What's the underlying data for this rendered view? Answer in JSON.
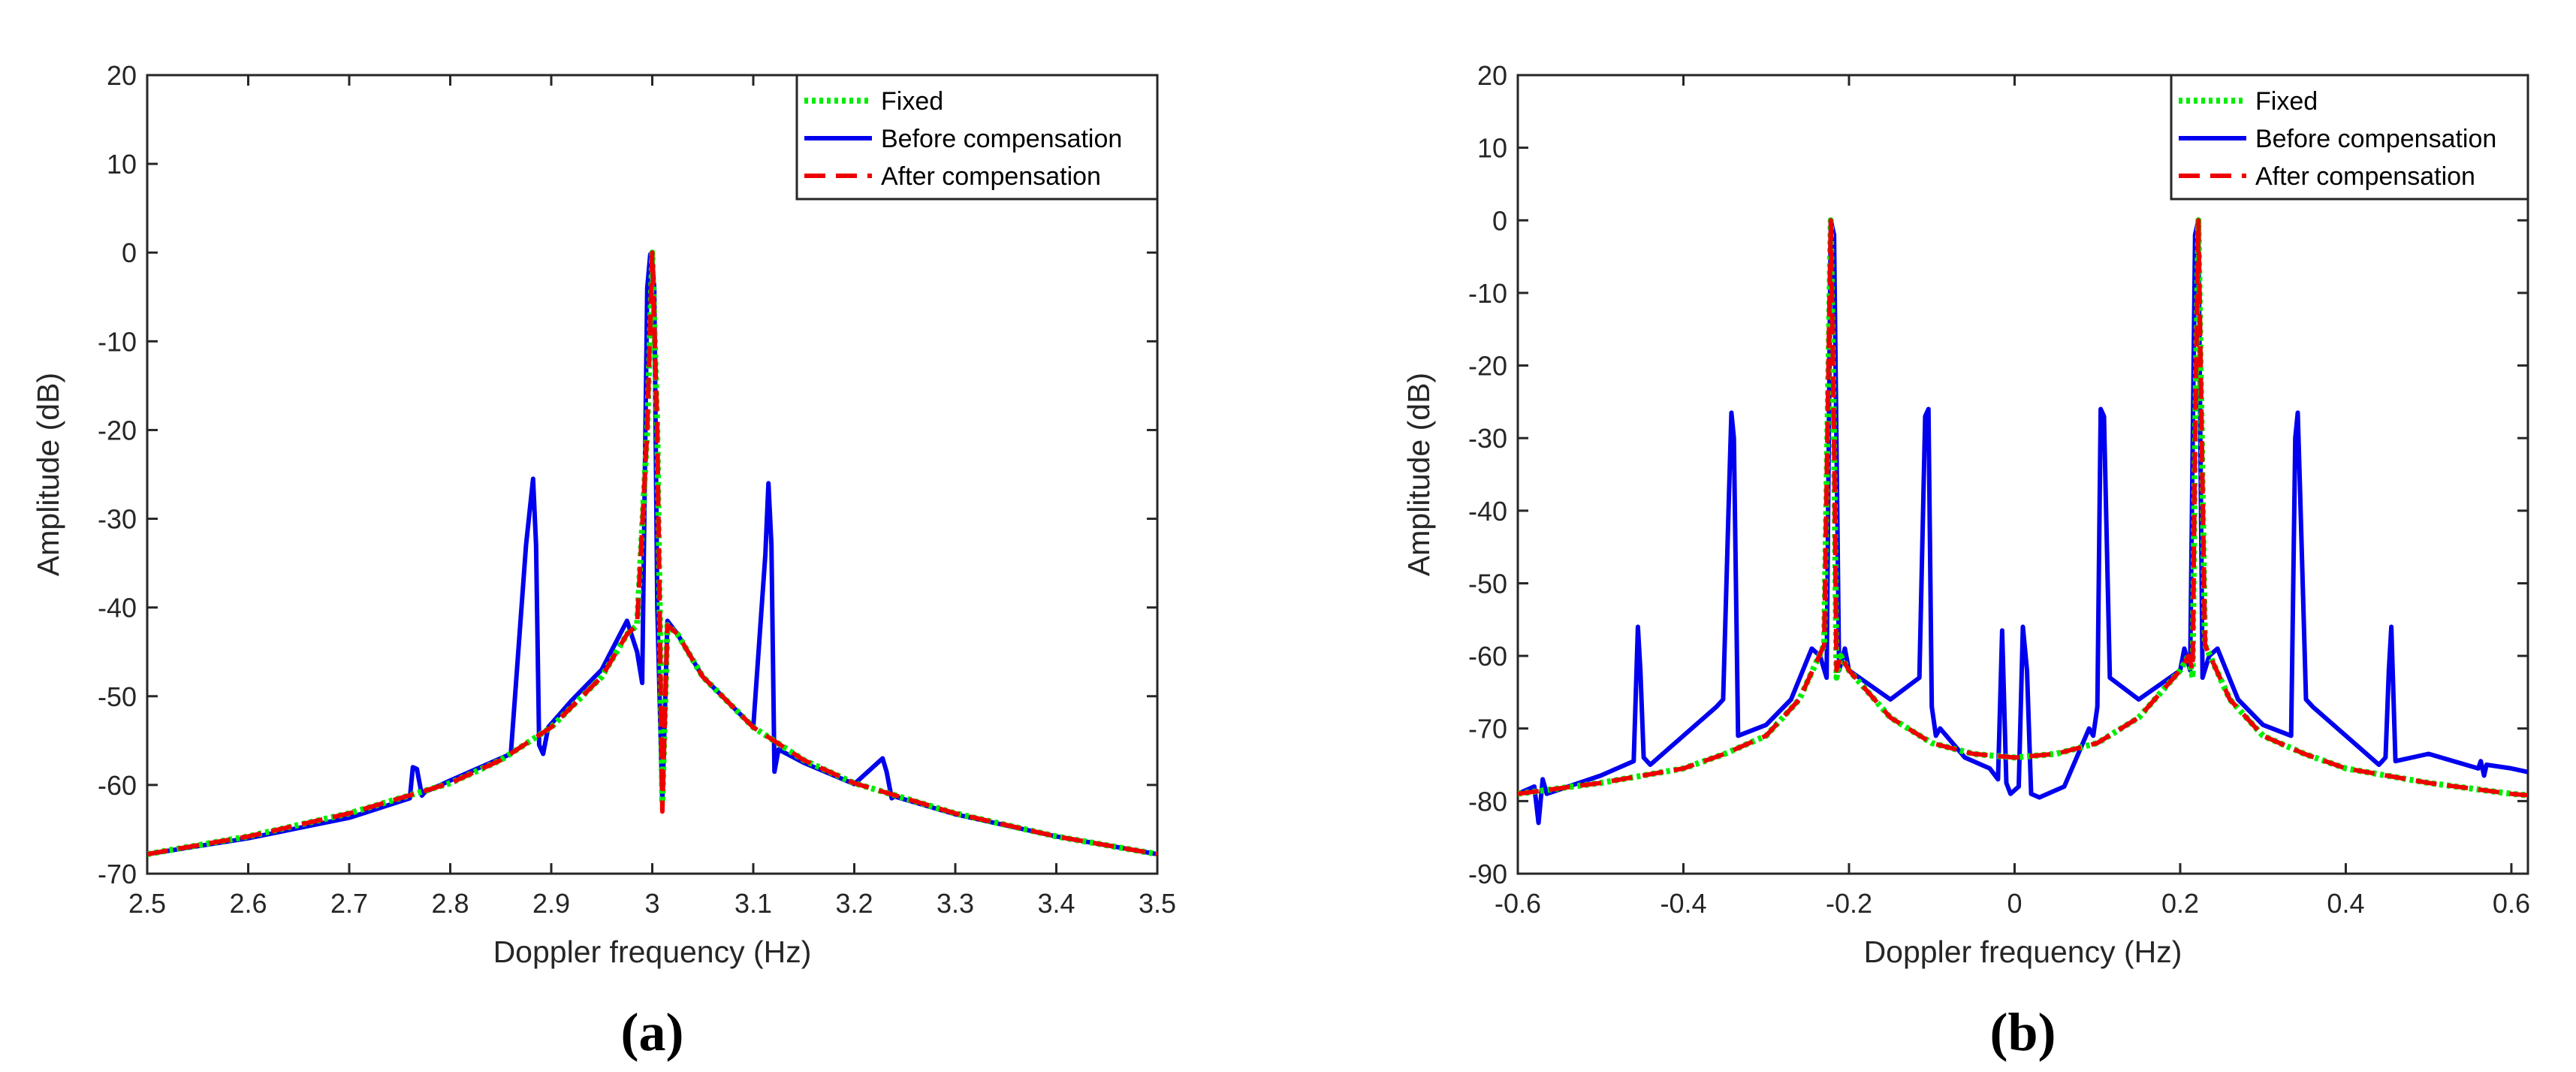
{
  "chart_data": [
    {
      "type": "line",
      "panel_label": "(a)",
      "xlabel": "Doppler frequency (Hz)",
      "ylabel": "Amplitude (dB)",
      "xlim": [
        2.5,
        3.5
      ],
      "ylim": [
        -70,
        20
      ],
      "xticks": [
        2.5,
        2.6,
        2.7,
        2.8,
        2.9,
        3.0,
        3.1,
        3.2,
        3.3,
        3.4,
        3.5
      ],
      "xtick_labels": [
        "2.5",
        "2.6",
        "2.7",
        "2.8",
        "2.9",
        "3",
        "3.1",
        "3.2",
        "3.3",
        "3.4",
        "3.5"
      ],
      "yticks": [
        -70,
        -60,
        -50,
        -40,
        -30,
        -20,
        -10,
        0,
        10,
        20
      ],
      "ytick_labels": [
        "-70",
        "-60",
        "-50",
        "-40",
        "-30",
        "-20",
        "-10",
        "0",
        "10",
        "20"
      ],
      "legend_position": "top-right",
      "grid": false,
      "series": [
        {
          "name": "Fixed",
          "style": "dotted",
          "color": "#00ee00",
          "x": [
            2.5,
            2.6,
            2.7,
            2.8,
            2.85,
            2.9,
            2.95,
            2.975,
            2.985,
            2.995,
            3.0,
            3.005,
            3.01,
            3.015,
            3.025,
            3.05,
            3.1,
            3.15,
            3.2,
            3.3,
            3.4,
            3.5
          ],
          "y": [
            -67.8,
            -65.8,
            -63.2,
            -59.8,
            -57.2,
            -53.5,
            -47.8,
            -43.0,
            -42.0,
            -20,
            0,
            -20,
            -62.0,
            -42.0,
            -43.0,
            -47.8,
            -53.5,
            -57.2,
            -59.8,
            -63.2,
            -65.8,
            -67.8
          ]
        },
        {
          "name": "Before compensation",
          "style": "solid",
          "color": "#0000ee",
          "x": [
            2.5,
            2.6,
            2.7,
            2.76,
            2.763,
            2.767,
            2.772,
            2.775,
            2.8,
            2.86,
            2.875,
            2.882,
            2.885,
            2.888,
            2.892,
            2.897,
            2.92,
            2.95,
            2.975,
            2.985,
            2.99,
            2.995,
            2.998,
            3.0,
            3.002,
            3.005,
            3.01,
            3.015,
            3.025,
            3.05,
            3.1,
            3.112,
            3.115,
            3.118,
            3.121,
            3.125,
            3.15,
            3.2,
            3.228,
            3.232,
            3.237,
            3.24,
            3.3,
            3.4,
            3.5
          ],
          "y": [
            -67.8,
            -66.0,
            -63.7,
            -61.5,
            -58.0,
            -58.2,
            -61.2,
            -60.8,
            -59.5,
            -56.5,
            -33.0,
            -25.5,
            -33.0,
            -55.5,
            -56.5,
            -53.5,
            -50.5,
            -47.0,
            -41.5,
            -45.0,
            -48.5,
            -4.0,
            -0.2,
            -1.0,
            -4.0,
            -40.0,
            -62.0,
            -41.5,
            -43.0,
            -47.8,
            -53.5,
            -34.0,
            -26.0,
            -33.0,
            -58.5,
            -56.0,
            -57.5,
            -59.9,
            -57.0,
            -58.5,
            -61.5,
            -61.3,
            -63.3,
            -65.8,
            -67.8
          ]
        },
        {
          "name": "After compensation",
          "style": "dashed",
          "color": "#ee0000",
          "x": [
            2.5,
            2.6,
            2.7,
            2.8,
            2.85,
            2.9,
            2.95,
            2.975,
            2.985,
            2.995,
            3.0,
            3.005,
            3.01,
            3.015,
            3.025,
            3.05,
            3.1,
            3.15,
            3.2,
            3.3,
            3.4,
            3.5
          ],
          "y": [
            -67.8,
            -65.8,
            -63.2,
            -59.8,
            -57.2,
            -53.5,
            -47.8,
            -43.0,
            -42.0,
            -20,
            0,
            -20,
            -63.0,
            -42.0,
            -43.0,
            -47.8,
            -53.5,
            -57.2,
            -59.8,
            -63.2,
            -65.8,
            -67.8
          ]
        }
      ]
    },
    {
      "type": "line",
      "panel_label": "(b)",
      "xlabel": "Doppler frequency (Hz)",
      "ylabel": "Amplitude (dB)",
      "xlim": [
        -0.6,
        0.62
      ],
      "ylim": [
        -90,
        20
      ],
      "xticks": [
        -0.6,
        -0.4,
        -0.2,
        0,
        0.2,
        0.4,
        0.6
      ],
      "xtick_labels": [
        "-0.6",
        "-0.4",
        "-0.2",
        "0",
        "0.2",
        "0.4",
        "0.6"
      ],
      "yticks": [
        -90,
        -80,
        -70,
        -60,
        -50,
        -40,
        -30,
        -20,
        -10,
        0,
        10,
        20
      ],
      "ytick_labels": [
        "-90",
        "-80",
        "-70",
        "-60",
        "-50",
        "-40",
        "-30",
        "-20",
        "-10",
        "0",
        "10",
        "20"
      ],
      "legend_position": "top-right",
      "grid": false,
      "series": [
        {
          "name": "Fixed",
          "style": "dotted",
          "color": "#00ee00",
          "x": [
            -0.6,
            -0.5,
            -0.4,
            -0.35,
            -0.3,
            -0.26,
            -0.24,
            -0.23,
            -0.222,
            -0.218,
            -0.215,
            -0.21,
            -0.2,
            -0.15,
            -0.1,
            -0.05,
            0,
            0.05,
            0.1,
            0.15,
            0.2,
            0.21,
            0.215,
            0.218,
            0.222,
            0.23,
            0.24,
            0.26,
            0.3,
            0.35,
            0.4,
            0.5,
            0.6,
            0.62
          ],
          "y": [
            -79.0,
            -77.5,
            -75.5,
            -73.5,
            -71.0,
            -66.0,
            -61.0,
            -58.5,
            0,
            -30,
            -63.0,
            -60.0,
            -62.0,
            -68.5,
            -72.0,
            -73.5,
            -74.0,
            -73.5,
            -72.0,
            -68.5,
            -62.0,
            -60.0,
            -63.0,
            -30,
            0,
            -58.5,
            -61.0,
            -66.0,
            -71.0,
            -73.5,
            -75.5,
            -77.5,
            -79.0,
            -79.2
          ]
        },
        {
          "name": "Before compensation",
          "style": "solid",
          "color": "#0000ee",
          "x": [
            -0.6,
            -0.58,
            -0.575,
            -0.57,
            -0.565,
            -0.5,
            -0.46,
            -0.455,
            -0.452,
            -0.448,
            -0.44,
            -0.4,
            -0.36,
            -0.352,
            -0.345,
            -0.342,
            -0.339,
            -0.334,
            -0.3,
            -0.27,
            -0.245,
            -0.235,
            -0.227,
            -0.222,
            -0.218,
            -0.212,
            -0.205,
            -0.2,
            -0.15,
            -0.115,
            -0.108,
            -0.104,
            -0.1,
            -0.095,
            -0.09,
            -0.06,
            -0.03,
            -0.02,
            -0.015,
            -0.01,
            -0.005,
            0.005,
            0.01,
            0.015,
            0.02,
            0.03,
            0.06,
            0.09,
            0.095,
            0.1,
            0.104,
            0.108,
            0.115,
            0.15,
            0.2,
            0.205,
            0.212,
            0.218,
            0.222,
            0.227,
            0.235,
            0.245,
            0.27,
            0.3,
            0.334,
            0.339,
            0.342,
            0.345,
            0.352,
            0.36,
            0.4,
            0.44,
            0.448,
            0.452,
            0.455,
            0.46,
            0.5,
            0.56,
            0.563,
            0.567,
            0.57,
            0.6,
            0.62
          ],
          "y": [
            -79.0,
            -78.0,
            -83.0,
            -77.0,
            -79.0,
            -76.5,
            -74.5,
            -56.0,
            -62.0,
            -74.0,
            -75.0,
            -71.0,
            -67.0,
            -66.0,
            -38.0,
            -26.5,
            -30.0,
            -71.0,
            -69.5,
            -66.0,
            -59.0,
            -60.0,
            -63.0,
            0,
            -2.0,
            -62.0,
            -59.0,
            -62.0,
            -66.0,
            -63.0,
            -27.0,
            -26.0,
            -67.0,
            -71.0,
            -70.0,
            -74.0,
            -75.5,
            -77.0,
            -56.5,
            -77.5,
            -79.0,
            -78.0,
            -56.0,
            -62.0,
            -79.0,
            -79.5,
            -78.0,
            -70.0,
            -71.0,
            -67.0,
            -26.0,
            -27.0,
            -63.0,
            -66.0,
            -62.0,
            -59.0,
            -62.0,
            -2.0,
            0,
            -63.0,
            -60.0,
            -59.0,
            -66.0,
            -69.5,
            -71.0,
            -30.0,
            -26.5,
            -38.0,
            -66.0,
            -67.0,
            -71.0,
            -75.0,
            -74.0,
            -62.0,
            -56.0,
            -74.5,
            -73.5,
            -75.5,
            -74.5,
            -76.5,
            -75.0,
            -75.5,
            -76.0
          ]
        },
        {
          "name": "After compensation",
          "style": "dashed",
          "color": "#ee0000",
          "x": [
            -0.6,
            -0.5,
            -0.4,
            -0.35,
            -0.3,
            -0.26,
            -0.24,
            -0.23,
            -0.222,
            -0.218,
            -0.215,
            -0.21,
            -0.2,
            -0.15,
            -0.1,
            -0.05,
            0,
            0.05,
            0.1,
            0.15,
            0.2,
            0.21,
            0.215,
            0.218,
            0.222,
            0.23,
            0.24,
            0.26,
            0.3,
            0.35,
            0.4,
            0.5,
            0.6,
            0.62
          ],
          "y": [
            -79.0,
            -77.5,
            -75.5,
            -73.5,
            -71.0,
            -66.0,
            -61.0,
            -58.5,
            0,
            -30,
            -62.0,
            -60.0,
            -62.0,
            -68.5,
            -72.0,
            -73.5,
            -74.0,
            -73.5,
            -72.0,
            -68.5,
            -62.0,
            -60.0,
            -62.0,
            -30,
            0,
            -58.5,
            -61.0,
            -66.0,
            -71.0,
            -73.5,
            -75.5,
            -77.5,
            -79.0,
            -79.2
          ]
        }
      ]
    }
  ]
}
